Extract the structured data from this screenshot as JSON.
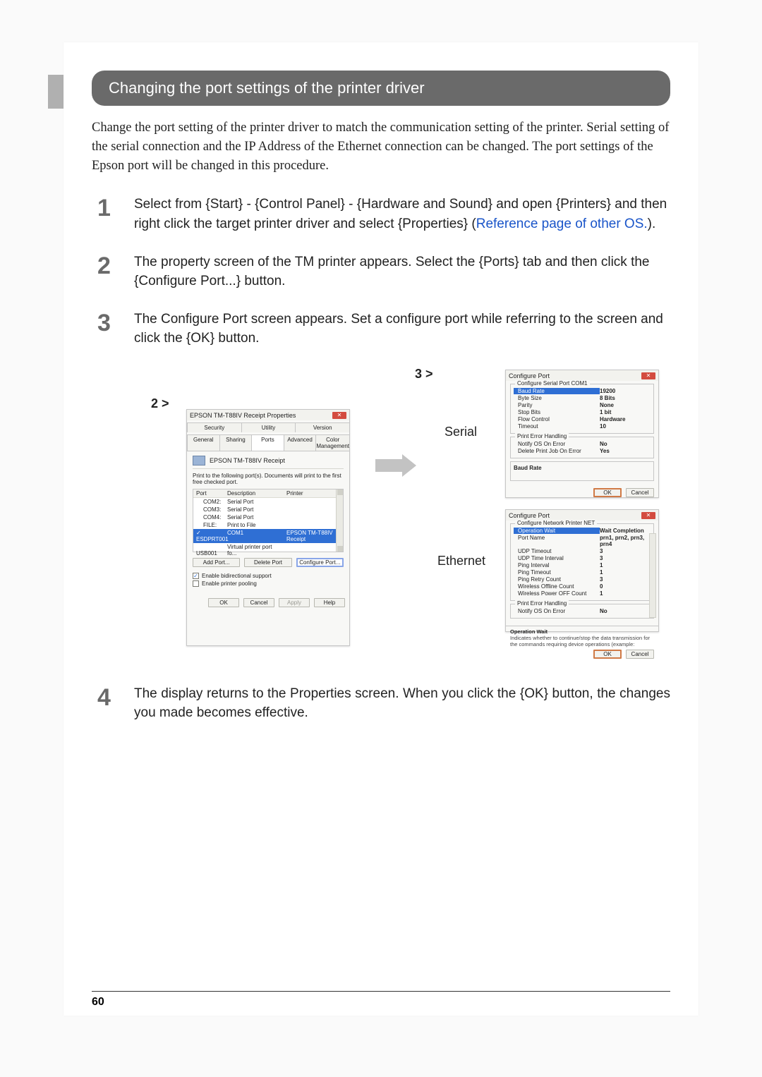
{
  "header": {
    "title": "Changing the port settings of the printer driver"
  },
  "intro": "Change the port setting of the printer driver to match the communication setting of the printer. Serial setting of the serial connection and the IP Address of the Ethernet connection can be changed. The port settings of the Epson port will be changed in this procedure.",
  "steps": [
    {
      "n": "1",
      "pre": "Select from {Start} - {Control Panel} - {Hardware and Sound} and open {Printers} and then right click the target printer driver and select {Properties} (",
      "link": "Reference page of other OS.",
      "post": ")."
    },
    {
      "n": "2",
      "text": "The property screen of the TM printer appears. Select the {Ports} tab and then click the {Configure Port...} button."
    },
    {
      "n": "3",
      "text": "The Configure Port screen appears. Set a configure port while referring to the screen and click the {OK} button."
    },
    {
      "n": "4",
      "text": "The display returns to the Properties screen. When you click the {OK} button, the changes you made becomes effective."
    }
  ],
  "figure": {
    "label2": "2 >",
    "label3": "3 >",
    "serial_label": "Serial",
    "ethernet_label": "Ethernet"
  },
  "props_dialog": {
    "title": "EPSON TM-T88IV Receipt Properties",
    "tabs_row1": [
      "Security",
      "Utility",
      "Version"
    ],
    "tabs_row2": [
      "General",
      "Sharing",
      "Ports",
      "Advanced",
      "Color Management"
    ],
    "printer_name": "EPSON TM-T88IV Receipt",
    "hint": "Print to the following port(s). Documents will print to the first free checked port.",
    "columns": {
      "port": "Port",
      "desc": "Description",
      "printer": "Printer"
    },
    "rows": [
      {
        "chk": "",
        "port": "COM2:",
        "desc": "Serial Port",
        "printer": ""
      },
      {
        "chk": "",
        "port": "COM3:",
        "desc": "Serial Port",
        "printer": ""
      },
      {
        "chk": "",
        "port": "COM4:",
        "desc": "Serial Port",
        "printer": ""
      },
      {
        "chk": "",
        "port": "FILE:",
        "desc": "Print to File",
        "printer": ""
      },
      {
        "chk": "✓",
        "port": "ESDPRT001",
        "desc": "COM1",
        "printer": "EPSON TM-T88IV Receipt",
        "selected": true
      },
      {
        "chk": "",
        "port": "USB001",
        "desc": "Virtual printer port fo...",
        "printer": ""
      }
    ],
    "buttons": {
      "add": "Add Port...",
      "delete": "Delete Port",
      "configure": "Configure Port..."
    },
    "check1": "Enable bidirectional support",
    "check2": "Enable printer pooling",
    "footer": {
      "ok": "OK",
      "cancel": "Cancel",
      "apply": "Apply",
      "help": "Help"
    }
  },
  "serial_dialog": {
    "title": "Configure Port",
    "group1_title": "Configure Serial Port COM1",
    "rows": [
      {
        "k": "Baud Rate",
        "v": "19200",
        "selected": true
      },
      {
        "k": "Byte Size",
        "v": "8 Bits"
      },
      {
        "k": "Parity",
        "v": "None"
      },
      {
        "k": "Stop Bits",
        "v": "1 bit"
      },
      {
        "k": "Flow Control",
        "v": "Hardware"
      },
      {
        "k": "Timeout",
        "v": "10"
      }
    ],
    "group2_title": "Print Error Handling",
    "rows2": [
      {
        "k": "Notify OS On Error",
        "v": "No"
      },
      {
        "k": "Delete Print Job On Error",
        "v": "Yes"
      }
    ],
    "desc_title": "Baud Rate",
    "footer": {
      "ok": "OK",
      "cancel": "Cancel"
    }
  },
  "net_dialog": {
    "title": "Configure Port",
    "group1_title": "Configure Network Printer NET",
    "rows": [
      {
        "k": "Operation Wait",
        "v": "Wait Completion",
        "selected": true
      },
      {
        "k": "Port Name",
        "v": "prn1, prn2, prn3, prn4"
      },
      {
        "k": "UDP Timeout",
        "v": "3"
      },
      {
        "k": "UDP Time Interval",
        "v": "3"
      },
      {
        "k": "Ping Interval",
        "v": "1"
      },
      {
        "k": "Ping Timeout",
        "v": "1"
      },
      {
        "k": "Ping Retry Count",
        "v": "3"
      },
      {
        "k": "Wireless Offline Count",
        "v": "0"
      },
      {
        "k": "Wireless Power OFF Count",
        "v": "1"
      }
    ],
    "group2_title": "Print Error Handling",
    "rows2": [
      {
        "k": "Notify OS On Error",
        "v": "No"
      }
    ],
    "desc_title": "Operation Wait",
    "desc_text": "Indicates whether to continue/stop the data transmission for the commands requiring device operations (example:",
    "footer": {
      "ok": "OK",
      "cancel": "Cancel"
    }
  },
  "page_number": "60"
}
